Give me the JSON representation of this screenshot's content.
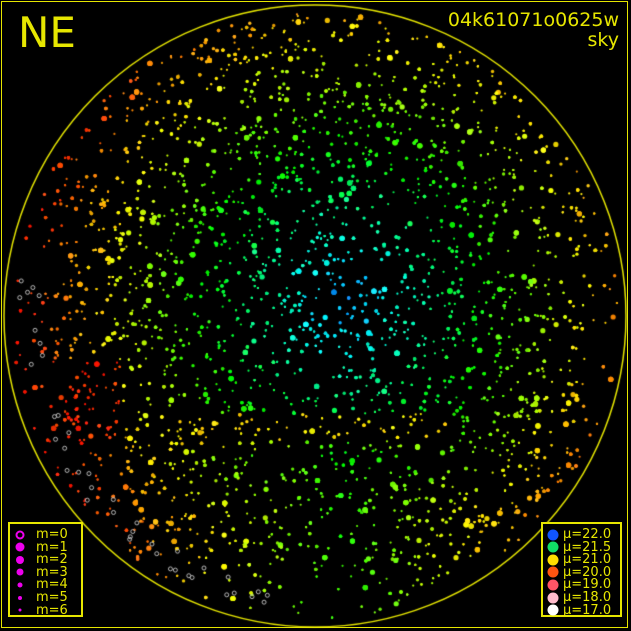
{
  "plot": {
    "direction_label": "NE",
    "title_line1": "04k61071o0625w",
    "title_line2": "sky",
    "colors": {
      "frame": "#e6e600",
      "background": "#000000"
    }
  },
  "magnitude_legend": {
    "symbol_color": "#ee00ee",
    "items": [
      {
        "label": "m=0",
        "style": "ring"
      },
      {
        "label": "m=1",
        "style": "filled"
      },
      {
        "label": "m=2",
        "style": "filled"
      },
      {
        "label": "m=3",
        "style": "filled"
      },
      {
        "label": "m=4",
        "style": "filled"
      },
      {
        "label": "m=5",
        "style": "filled"
      },
      {
        "label": "m=6",
        "style": "filled"
      }
    ]
  },
  "brightness_legend": {
    "items": [
      {
        "label": "μ=22.0",
        "color": "#1155ff"
      },
      {
        "label": "μ=21.5",
        "color": "#11dd66"
      },
      {
        "label": "μ=21.0",
        "color": "#ffdd00"
      },
      {
        "label": "μ=20.0",
        "color": "#ff5511"
      },
      {
        "label": "μ=19.0",
        "color": "#ff5566"
      },
      {
        "label": "μ=18.0",
        "color": "#ffbbcc"
      },
      {
        "label": "μ=17.0",
        "color": "#ffffff"
      }
    ]
  }
}
